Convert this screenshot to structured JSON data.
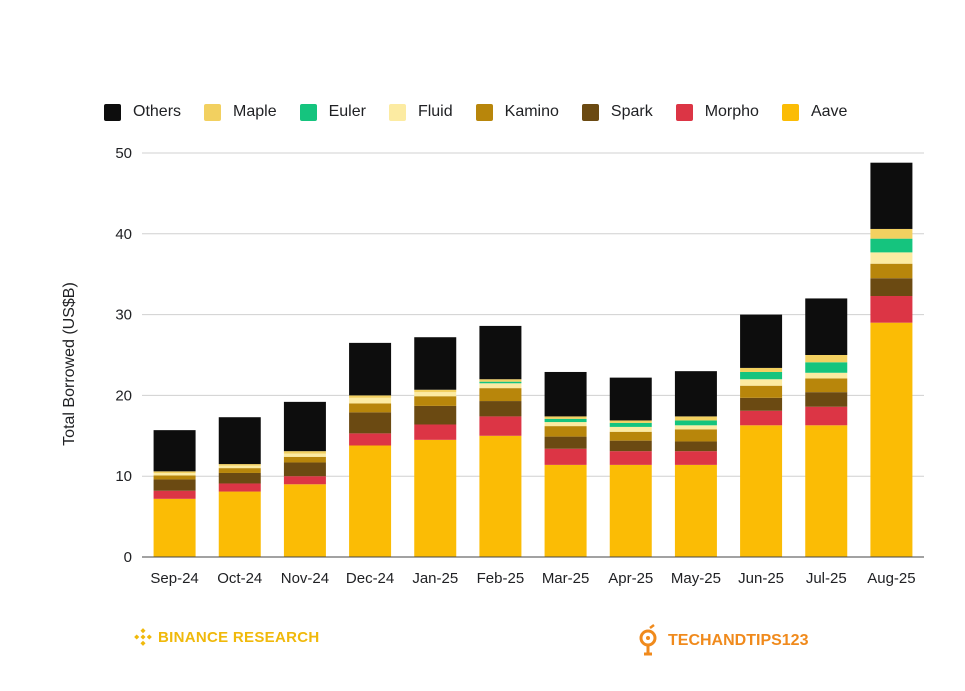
{
  "legend": [
    "Others",
    "Maple",
    "Euler",
    "Fluid",
    "Kamino",
    "Spark",
    "Morpho",
    "Aave"
  ],
  "colors": {
    "Others": "#0d0d0d",
    "Maple": "#F2D060",
    "Euler": "#15C47E",
    "Fluid": "#FCEBA2",
    "Kamino": "#B8860B",
    "Spark": "#6B4A12",
    "Morpho": "#DC3545",
    "Aave": "#FBBC05"
  },
  "branding": {
    "left": "BINANCE RESEARCH",
    "right": "TECHANDTIPS123",
    "left_icon": "binance-logo-icon",
    "right_icon": "techandtips-logo-icon"
  },
  "chart_data": {
    "type": "bar",
    "stacked": true,
    "ylabel": "Total Borrowed (US$B)",
    "xlabel": "",
    "ylim": [
      0,
      50
    ],
    "yticks": [
      0,
      10,
      20,
      30,
      40,
      50
    ],
    "grid": true,
    "legend_position": "top",
    "categories": [
      "Sep-24",
      "Oct-24",
      "Nov-24",
      "Dec-24",
      "Jan-25",
      "Feb-25",
      "Mar-25",
      "Apr-25",
      "May-25",
      "Jun-25",
      "Jul-25",
      "Aug-25"
    ],
    "series": [
      {
        "name": "Aave",
        "values": [
          7.2,
          8.1,
          9.0,
          13.8,
          14.5,
          15.0,
          11.4,
          11.4,
          11.4,
          16.3,
          16.3,
          29.0
        ]
      },
      {
        "name": "Morpho",
        "values": [
          1.0,
          1.0,
          1.0,
          1.5,
          1.9,
          2.4,
          2.0,
          1.7,
          1.7,
          1.8,
          2.3,
          3.3
        ]
      },
      {
        "name": "Spark",
        "values": [
          1.4,
          1.3,
          1.7,
          2.6,
          2.3,
          1.9,
          1.5,
          1.3,
          1.2,
          1.6,
          1.8,
          2.2
        ]
      },
      {
        "name": "Kamino",
        "values": [
          0.5,
          0.6,
          0.7,
          1.1,
          1.2,
          1.6,
          1.3,
          1.1,
          1.5,
          1.5,
          1.7,
          1.8
        ]
      },
      {
        "name": "Fluid",
        "values": [
          0.3,
          0.3,
          0.4,
          0.7,
          0.5,
          0.6,
          0.5,
          0.6,
          0.5,
          0.8,
          0.7,
          1.4
        ]
      },
      {
        "name": "Euler",
        "values": [
          0.0,
          0.0,
          0.0,
          0.0,
          0.0,
          0.2,
          0.4,
          0.5,
          0.6,
          0.9,
          1.3,
          1.7
        ]
      },
      {
        "name": "Maple",
        "values": [
          0.2,
          0.2,
          0.3,
          0.3,
          0.3,
          0.3,
          0.3,
          0.3,
          0.5,
          0.5,
          0.9,
          1.2
        ]
      },
      {
        "name": "Others",
        "values": [
          5.1,
          5.8,
          6.1,
          6.5,
          6.5,
          6.6,
          5.5,
          5.3,
          5.6,
          6.6,
          7.0,
          8.2
        ]
      }
    ]
  }
}
